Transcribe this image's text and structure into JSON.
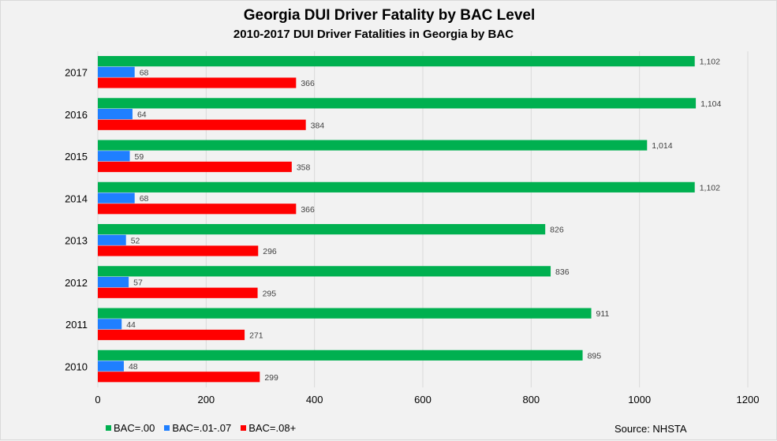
{
  "chart_data": {
    "type": "bar",
    "orientation": "horizontal",
    "title": "Georgia DUI Driver Fatality by BAC Level",
    "subtitle": "2010-2017 DUI Driver Fatalities in Georgia by BAC",
    "categories": [
      "2017",
      "2016",
      "2015",
      "2014",
      "2013",
      "2012",
      "2011",
      "2010"
    ],
    "series": [
      {
        "name": "BAC=.00",
        "color": "#00b050",
        "values": [
          1102,
          1104,
          1014,
          1102,
          826,
          836,
          911,
          895
        ],
        "labels": [
          "1,102",
          "1,104",
          "1,014",
          "1,102",
          "826",
          "836",
          "911",
          "895"
        ]
      },
      {
        "name": "BAC=.01-.07",
        "color": "#1f7fff",
        "values": [
          68,
          64,
          59,
          68,
          52,
          57,
          44,
          48
        ],
        "labels": [
          "68",
          "64",
          "59",
          "68",
          "52",
          "57",
          "44",
          "48"
        ]
      },
      {
        "name": "BAC=.08+",
        "color": "#ff0000",
        "values": [
          366,
          384,
          358,
          366,
          296,
          295,
          271,
          299
        ],
        "labels": [
          "366",
          "384",
          "358",
          "366",
          "296",
          "295",
          "271",
          "299"
        ]
      }
    ],
    "xlim": [
      0,
      1200
    ],
    "xticks": [
      "0",
      "200",
      "400",
      "600",
      "800",
      "1000",
      "1200"
    ],
    "grid": true,
    "legend_placement": "bottom-left",
    "source": "Source: NHSTA"
  }
}
